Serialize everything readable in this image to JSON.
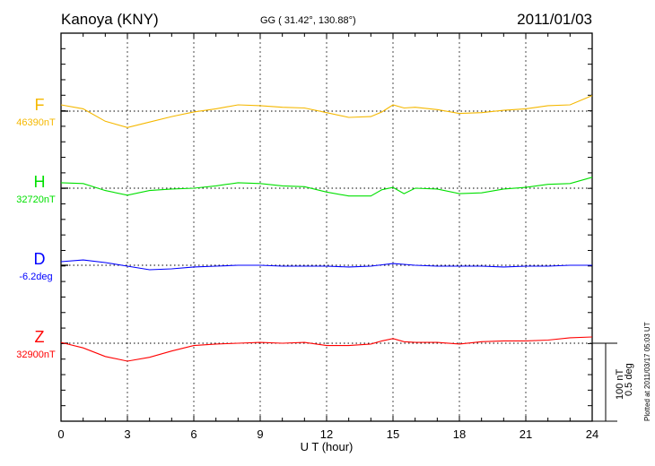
{
  "chart_data": {
    "type": "line",
    "title": "Kanoya (KNY)",
    "subtitle": "GG ( 31.42°, 130.88°)",
    "date": "2011/01/03",
    "xlabel": "U T (hour)",
    "xlim": [
      0,
      24
    ],
    "xticks": [
      "0",
      "3",
      "6",
      "9",
      "12",
      "15",
      "18",
      "21",
      "24"
    ],
    "scale_label_1": "100 nT",
    "scale_label_2": "0.5 deg",
    "plotted_note": "Plotted at 2011/03/17 05:03 UT",
    "x": [
      0,
      1,
      2,
      3,
      4,
      5,
      6,
      7,
      8,
      9,
      10,
      11,
      12,
      13,
      14,
      14.5,
      15,
      15.5,
      16,
      17,
      18,
      19,
      20,
      21,
      22,
      23,
      24
    ],
    "series": [
      {
        "name": "F",
        "baseline_label": "46390nT",
        "unit": "nT",
        "color": "#f5b800",
        "values": [
          8,
          3,
          -13,
          -21,
          -14,
          -7,
          -1,
          3,
          8,
          7,
          5,
          4,
          -2,
          -8,
          -7,
          -1,
          8,
          4,
          5,
          2,
          -3,
          -2,
          1,
          3,
          7,
          8,
          20
        ]
      },
      {
        "name": "H",
        "baseline_label": "32720nT",
        "unit": "nT",
        "color": "#00e000",
        "values": [
          7,
          6,
          -3,
          -9,
          -3,
          -1,
          0,
          3,
          7,
          6,
          3,
          2,
          -5,
          -10,
          -10,
          -2,
          1,
          -7,
          0,
          -1,
          -7,
          -6,
          -1,
          1,
          5,
          6,
          14
        ]
      },
      {
        "name": "D",
        "baseline_label": "-6.2deg",
        "unit": "deg",
        "color": "#0000ff",
        "values": [
          0.023,
          0.034,
          0.017,
          -0.006,
          -0.029,
          -0.023,
          -0.011,
          -0.006,
          0,
          0,
          -0.006,
          -0.006,
          -0.006,
          -0.011,
          -0.006,
          0.003,
          0.011,
          0.006,
          0,
          -0.006,
          -0.006,
          -0.006,
          -0.011,
          -0.006,
          -0.006,
          0,
          0
        ]
      },
      {
        "name": "Z",
        "baseline_label": "32900nT",
        "unit": "nT",
        "color": "#ff0000",
        "values": [
          1,
          -6,
          -17,
          -23,
          -18,
          -10,
          -3,
          -1,
          0,
          1,
          0,
          1,
          -3,
          -3,
          -1,
          3,
          6,
          2,
          1,
          1,
          -1,
          2,
          3,
          3,
          4,
          7,
          8
        ]
      }
    ]
  }
}
